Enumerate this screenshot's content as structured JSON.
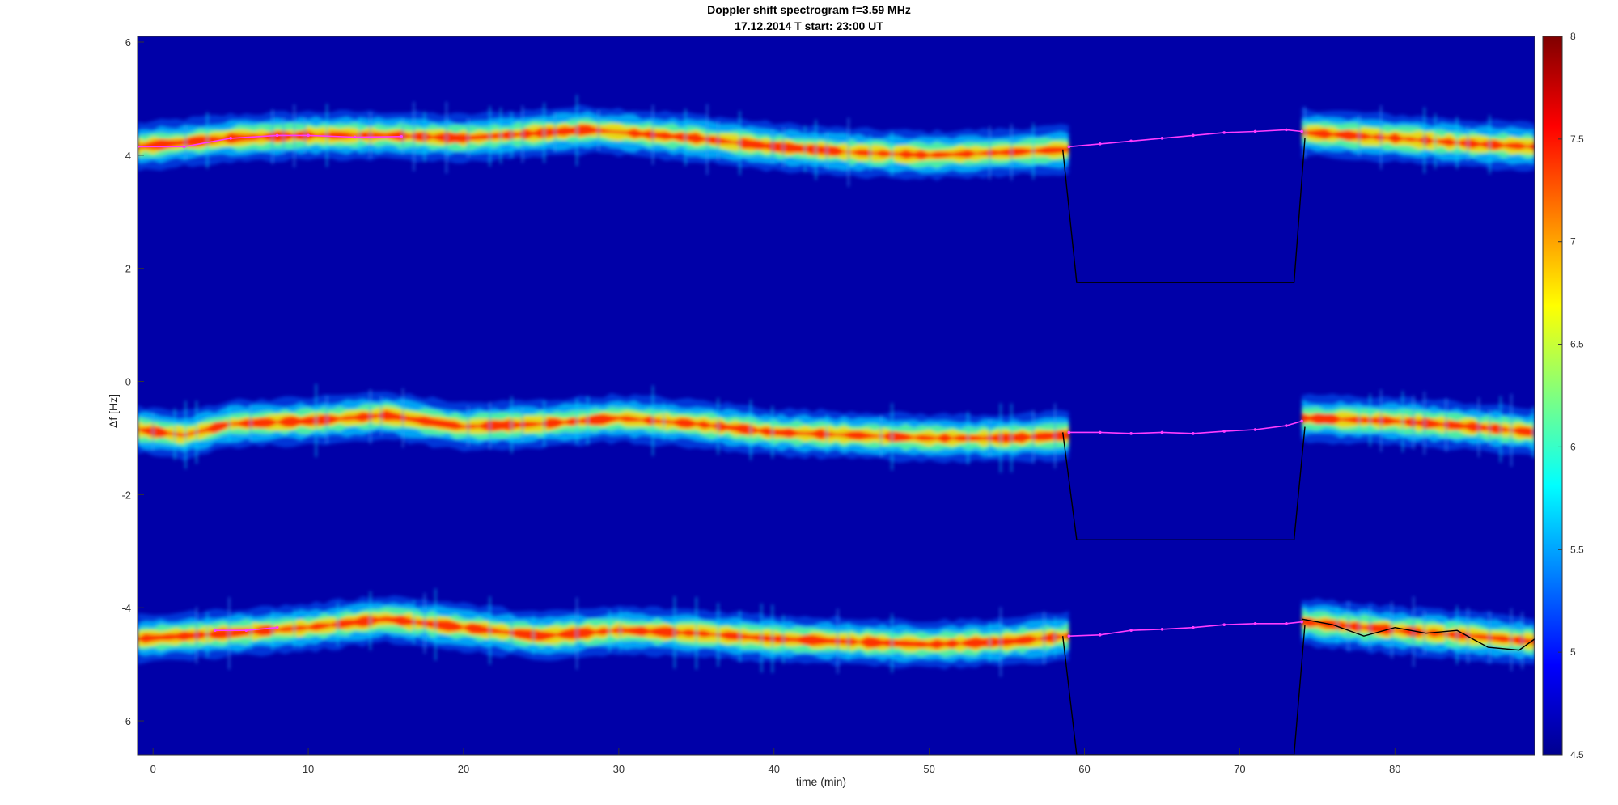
{
  "chart_data": {
    "type": "heatmap",
    "title": "Doppler shift spectrogram f=3.59 MHz",
    "subtitle": "17.12.2014    T start: 23:00 UT",
    "xlabel": "time (min)",
    "ylabel": "Δf [Hz]",
    "xlim": [
      -1,
      89
    ],
    "ylim": [
      -6.6,
      6.1
    ],
    "xticks": [
      0,
      10,
      20,
      30,
      40,
      50,
      60,
      70,
      80
    ],
    "yticks": [
      -6,
      -4,
      -2,
      0,
      2,
      4,
      6
    ],
    "colorbar": {
      "min": 4.5,
      "max": 8,
      "ticks": [
        4.5,
        5,
        5.5,
        6,
        6.5,
        7,
        7.5,
        8
      ],
      "colormap": "jet"
    },
    "data_gap": {
      "x_start": 59,
      "x_end": 74
    },
    "series": [
      {
        "kind": "spectral-trace",
        "x": [
          -1,
          5,
          10,
          15,
          20,
          28,
          35,
          40,
          45,
          50,
          55,
          59,
          74,
          80,
          85,
          89
        ],
        "y": [
          4.15,
          4.3,
          4.35,
          4.35,
          4.3,
          4.45,
          4.3,
          4.15,
          4.05,
          4.0,
          4.05,
          4.1,
          4.4,
          4.3,
          4.2,
          4.15
        ]
      },
      {
        "kind": "spectral-trace",
        "x": [
          -1,
          2,
          5,
          10,
          15,
          20,
          25,
          30,
          35,
          40,
          45,
          50,
          55,
          59,
          74,
          80,
          85,
          89
        ],
        "y": [
          -0.85,
          -0.95,
          -0.75,
          -0.7,
          -0.6,
          -0.8,
          -0.75,
          -0.65,
          -0.75,
          -0.9,
          -0.95,
          -1.0,
          -1.0,
          -0.95,
          -0.65,
          -0.7,
          -0.8,
          -0.9
        ]
      },
      {
        "kind": "spectral-trace",
        "x": [
          -1,
          5,
          10,
          15,
          20,
          25,
          30,
          35,
          40,
          45,
          50,
          55,
          59,
          74,
          80,
          85,
          89
        ],
        "y": [
          -4.55,
          -4.45,
          -4.35,
          -4.2,
          -4.35,
          -4.5,
          -4.4,
          -4.45,
          -4.55,
          -4.6,
          -4.65,
          -4.6,
          -4.5,
          -4.25,
          -4.4,
          -4.5,
          -4.6
        ]
      },
      {
        "kind": "magenta-fit",
        "x": [
          -1,
          2,
          5,
          8,
          10,
          13,
          16
        ],
        "y": [
          4.15,
          4.15,
          4.3,
          4.35,
          4.35,
          4.32,
          4.33
        ]
      },
      {
        "kind": "magenta-fit",
        "x": [
          59,
          61,
          63,
          65,
          67,
          69,
          71,
          73,
          74
        ],
        "y": [
          4.15,
          4.2,
          4.25,
          4.3,
          4.35,
          4.4,
          4.42,
          4.45,
          4.42
        ]
      },
      {
        "kind": "magenta-fit",
        "x": [
          59,
          61,
          63,
          65,
          67,
          69,
          71,
          73,
          74
        ],
        "y": [
          -0.9,
          -0.9,
          -0.92,
          -0.9,
          -0.92,
          -0.88,
          -0.85,
          -0.78,
          -0.7
        ]
      },
      {
        "kind": "magenta-fit",
        "x": [
          4,
          6,
          8
        ],
        "y": [
          -4.4,
          -4.4,
          -4.35
        ]
      },
      {
        "kind": "magenta-fit",
        "x": [
          59,
          61,
          63,
          65,
          67,
          69,
          71,
          73,
          74
        ],
        "y": [
          -4.5,
          -4.48,
          -4.4,
          -4.38,
          -4.35,
          -4.3,
          -4.28,
          -4.28,
          -4.25
        ]
      },
      {
        "kind": "black-outline",
        "x": [
          58.6,
          59.5,
          73.5,
          74.2
        ],
        "y": [
          4.1,
          1.75,
          1.75,
          4.3
        ]
      },
      {
        "kind": "black-outline",
        "x": [
          58.6,
          59.5,
          73.5,
          74.2
        ],
        "y": [
          -0.9,
          -2.8,
          -2.8,
          -0.8
        ]
      },
      {
        "kind": "black-outline",
        "x": [
          58.6,
          59.5,
          73.5,
          74.2
        ],
        "y": [
          -4.5,
          -6.6,
          -6.6,
          -4.3
        ]
      },
      {
        "kind": "black-outline",
        "x": [
          74,
          76,
          78,
          80,
          82,
          84,
          86,
          88,
          89
        ],
        "y": [
          -4.2,
          -4.3,
          -4.5,
          -4.35,
          -4.45,
          -4.4,
          -4.7,
          -4.75,
          -4.55
        ]
      }
    ]
  }
}
